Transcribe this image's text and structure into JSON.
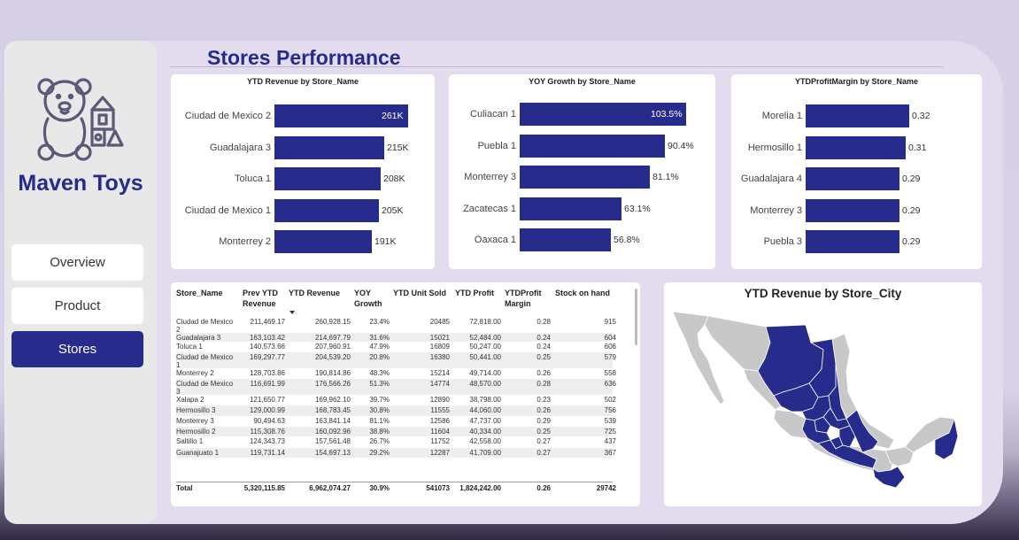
{
  "brand": {
    "name": "Maven Toys",
    "logo_icon": "teddy-bear-blocks-icon",
    "color": "#262a8a"
  },
  "nav": {
    "items": [
      {
        "label": "Overview",
        "active": false
      },
      {
        "label": "Product",
        "active": false
      },
      {
        "label": "Stores",
        "active": true
      }
    ]
  },
  "page": {
    "title": "Stores Performance"
  },
  "charts": {
    "revenue": {
      "title": "YTD Revenue by Store_Name",
      "labels": [
        "Ciudad de Mexico 2",
        "Guadalajara 3",
        "Toluca 1",
        "Ciudad de Mexico 1",
        "Monterrey 2"
      ],
      "display": [
        "261K",
        "215K",
        "208K",
        "205K",
        "191K"
      ]
    },
    "growth": {
      "title": "YOY Growth by Store_Name",
      "labels": [
        "Culiacan 1",
        "Puebla 1",
        "Monterrey 3",
        "Zacatecas 1",
        "Oaxaca 1"
      ],
      "display": [
        "103.5%",
        "90.4%",
        "81.1%",
        "63.1%",
        "56.8%"
      ]
    },
    "margin": {
      "title": "YTDProfitMargin by Store_Name",
      "labels": [
        "Morelia 1",
        "Hermosillo 1",
        "Guadalajara 4",
        "Monterrey 3",
        "Puebla 3"
      ],
      "display": [
        "0.32",
        "0.31",
        "0.29",
        "0.29",
        "0.29"
      ]
    },
    "map": {
      "title": "YTD Revenue by Store_City",
      "highlight_color": "#272c8c",
      "base_color": "#c8c8c8"
    }
  },
  "chart_data": [
    {
      "type": "bar",
      "orientation": "horizontal",
      "title": "YTD Revenue by Store_Name",
      "categories": [
        "Ciudad de Mexico 2",
        "Guadalajara 3",
        "Toluca 1",
        "Ciudad de Mexico 1",
        "Monterrey 2"
      ],
      "values": [
        260928.15,
        214697.79,
        207960.91,
        204539.2,
        190814.86
      ]
    },
    {
      "type": "bar",
      "orientation": "horizontal",
      "title": "YOY Growth by Store_Name",
      "categories": [
        "Culiacan 1",
        "Puebla 1",
        "Monterrey 3",
        "Zacatecas 1",
        "Oaxaca 1"
      ],
      "values": [
        103.5,
        90.4,
        81.1,
        63.1,
        56.8
      ]
    },
    {
      "type": "bar",
      "orientation": "horizontal",
      "title": "YTDProfitMargin by Store_Name",
      "categories": [
        "Morelia 1",
        "Hermosillo 1",
        "Guadalajara 4",
        "Monterrey 3",
        "Puebla 3"
      ],
      "values": [
        0.32,
        0.31,
        0.29,
        0.29,
        0.29
      ]
    }
  ],
  "table": {
    "headers": [
      "Store_Name",
      "Prev YTD Revenue",
      "YTD Revenue",
      "YOY Growth",
      "YTD Unit Sold",
      "YTD Profit",
      "YTDProfit Margin",
      "Stock on hand"
    ],
    "rows": [
      [
        "Ciudad de Mexico 2",
        "211,469.17",
        "260,928.15",
        "23.4%",
        "20485",
        "72,818.00",
        "0.28",
        "915"
      ],
      [
        "Guadalajara 3",
        "163,103.42",
        "214,697.79",
        "31.6%",
        "15021",
        "52,484.00",
        "0.24",
        "604"
      ],
      [
        "Toluca 1",
        "140,573.66",
        "207,960.91",
        "47.9%",
        "16809",
        "50,247.00",
        "0.24",
        "606"
      ],
      [
        "Ciudad de Mexico 1",
        "169,297.77",
        "204,539.20",
        "20.8%",
        "16380",
        "50,441.00",
        "0.25",
        "579"
      ],
      [
        "Monterrey 2",
        "128,703.86",
        "190,814.86",
        "48.3%",
        "15214",
        "49,714.00",
        "0.26",
        "558"
      ],
      [
        "Ciudad de Mexico 3",
        "116,691.99",
        "176,566.26",
        "51.3%",
        "14774",
        "48,570.00",
        "0.28",
        "636"
      ],
      [
        "Xalapa 2",
        "121,650.77",
        "169,962.10",
        "39.7%",
        "12890",
        "38,798.00",
        "0.23",
        "502"
      ],
      [
        "Hermosillo 3",
        "129,000.99",
        "168,783.45",
        "30.8%",
        "11555",
        "44,060.00",
        "0.26",
        "756"
      ],
      [
        "Monterrey 3",
        "90,494.63",
        "163,841.14",
        "81.1%",
        "12586",
        "47,737.00",
        "0.29",
        "539"
      ],
      [
        "Hermosillo 2",
        "115,308.76",
        "160,092.96",
        "38.8%",
        "11604",
        "40,334.00",
        "0.25",
        "725"
      ],
      [
        "Saltillo 1",
        "124,343.73",
        "157,561.48",
        "26.7%",
        "11752",
        "42,558.00",
        "0.27",
        "437"
      ],
      [
        "Guanajuato 1",
        "119,731.14",
        "154,697.13",
        "29.2%",
        "12287",
        "41,709.00",
        "0.27",
        "367"
      ]
    ],
    "total": [
      "Total",
      "5,320,115.85",
      "6,962,074.27",
      "30.9%",
      "541073",
      "1,824,242.00",
      "0.26",
      "29742"
    ]
  }
}
